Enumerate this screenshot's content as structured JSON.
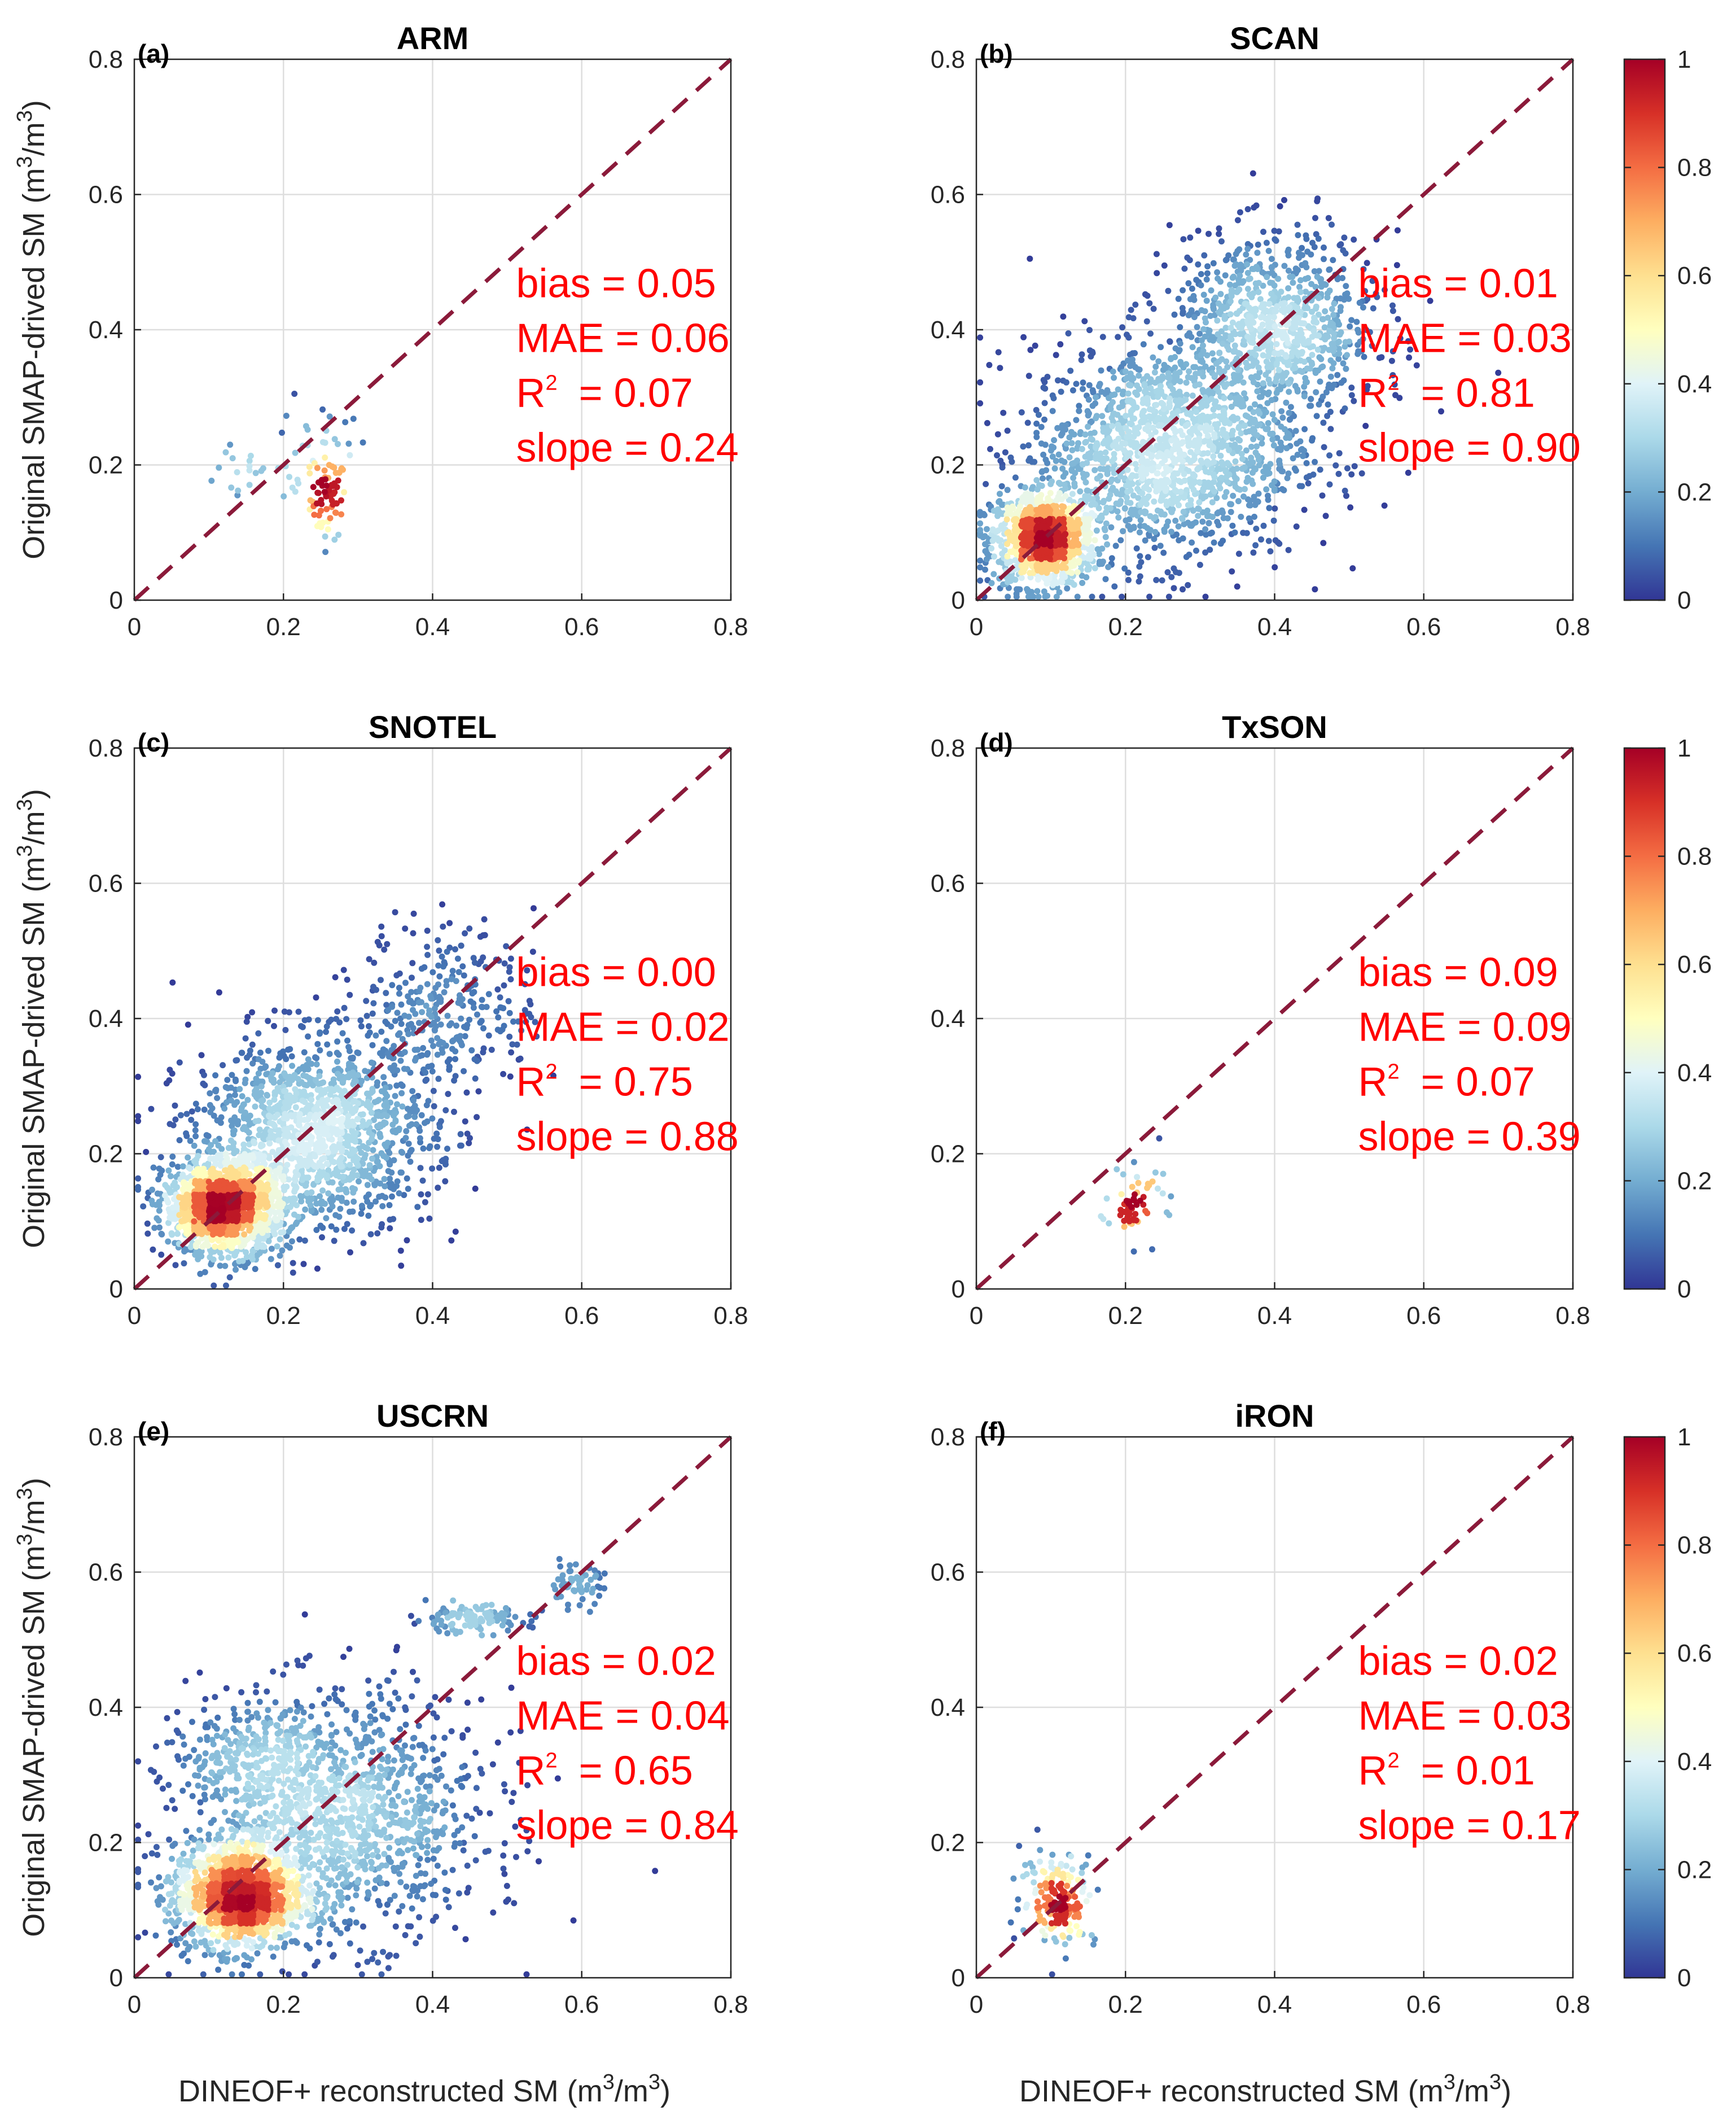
{
  "figure": {
    "xlabel": "DINEOF+ reconstructed SM (m",
    "ylabel": "Original SMAP-drived SM (m",
    "unit_sup": "3",
    "unit_mid": "/m",
    "unit_end": ")"
  },
  "colors": {
    "one_to_one_line": "#8b1a3a",
    "stat_text": "#ff0000",
    "colormap": [
      "#313695",
      "#4575b4",
      "#74add1",
      "#abd9e9",
      "#e0f3f8",
      "#ffffbf",
      "#fee090",
      "#fdae61",
      "#f46d43",
      "#d73027",
      "#a50026"
    ]
  },
  "colorbar": {
    "ticks": [
      0,
      0.2,
      0.4,
      0.6,
      0.8,
      1
    ],
    "tick_labels": [
      "0",
      "0.2",
      "0.4",
      "0.6",
      "0.8",
      "1"
    ]
  },
  "chart_data": [
    {
      "panel": "(a)",
      "title": "ARM",
      "type": "scatter",
      "xlim": [
        0,
        0.8
      ],
      "ylim": [
        0,
        0.8
      ],
      "xticks": [
        0,
        0.2,
        0.4,
        0.6,
        0.8
      ],
      "xtick_labels": [
        "0",
        "0.2",
        "0.4",
        "0.6",
        "0.8"
      ],
      "yticks": [
        0,
        0.2,
        0.4,
        0.6,
        0.8
      ],
      "ytick_labels": [
        "0",
        "0.2",
        "0.4",
        "0.6",
        "0.8"
      ],
      "grid": true,
      "one_to_one_line": true,
      "stats": {
        "bias": "bias = 0.05",
        "mae": "MAE = 0.06",
        "r2_label": "R",
        "r2_value": "= 0.07",
        "slope": "slope = 0.24"
      },
      "clusters": [
        {
          "x": 0.26,
          "y": 0.15,
          "sx": 0.012,
          "sy": 0.03,
          "n": 70
        },
        {
          "x": 0.16,
          "y": 0.18,
          "sx": 0.05,
          "sy": 0.02,
          "n": 25
        },
        {
          "x": 0.25,
          "y": 0.24,
          "sx": 0.03,
          "sy": 0.03,
          "n": 25
        }
      ]
    },
    {
      "panel": "(b)",
      "title": "SCAN",
      "type": "scatter",
      "xlim": [
        0,
        0.8
      ],
      "ylim": [
        0,
        0.8
      ],
      "xticks": [
        0,
        0.2,
        0.4,
        0.6,
        0.8
      ],
      "xtick_labels": [
        "0",
        "0.2",
        "0.4",
        "0.6",
        "0.8"
      ],
      "yticks": [
        0,
        0.2,
        0.4,
        0.6,
        0.8
      ],
      "ytick_labels": [
        "0",
        "0.2",
        "0.4",
        "0.6",
        "0.8"
      ],
      "grid": true,
      "one_to_one_line": true,
      "stats": {
        "bias": "bias = 0.01",
        "mae": "MAE = 0.03",
        "r2_label": "R",
        "r2_value": "= 0.81",
        "slope": "slope = 0.90"
      },
      "clusters": [
        {
          "x": 0.09,
          "y": 0.09,
          "sx": 0.035,
          "sy": 0.035,
          "n": 1000
        },
        {
          "x": 0.25,
          "y": 0.22,
          "sx": 0.09,
          "sy": 0.08,
          "n": 1500
        },
        {
          "x": 0.4,
          "y": 0.4,
          "sx": 0.07,
          "sy": 0.07,
          "n": 900
        }
      ]
    },
    {
      "panel": "(c)",
      "title": "SNOTEL",
      "type": "scatter",
      "xlim": [
        0,
        0.8
      ],
      "ylim": [
        0,
        0.8
      ],
      "xticks": [
        0,
        0.2,
        0.4,
        0.6,
        0.8
      ],
      "xtick_labels": [
        "0",
        "0.2",
        "0.4",
        "0.6",
        "0.8"
      ],
      "yticks": [
        0,
        0.2,
        0.4,
        0.6,
        0.8
      ],
      "ytick_labels": [
        "0",
        "0.2",
        "0.4",
        "0.6",
        "0.8"
      ],
      "grid": true,
      "one_to_one_line": true,
      "stats": {
        "bias": "bias = 0.00",
        "mae": "MAE = 0.02",
        "r2_label": "R",
        "r2_value": "= 0.75",
        "slope": "slope = 0.88"
      },
      "clusters": [
        {
          "x": 0.12,
          "y": 0.12,
          "sx": 0.04,
          "sy": 0.035,
          "n": 1300
        },
        {
          "x": 0.24,
          "y": 0.23,
          "sx": 0.08,
          "sy": 0.07,
          "n": 1400
        },
        {
          "x": 0.42,
          "y": 0.42,
          "sx": 0.06,
          "sy": 0.06,
          "n": 300
        }
      ]
    },
    {
      "panel": "(d)",
      "title": "TxSON",
      "type": "scatter",
      "xlim": [
        0,
        0.8
      ],
      "ylim": [
        0,
        0.8
      ],
      "xticks": [
        0,
        0.2,
        0.4,
        0.6,
        0.8
      ],
      "xtick_labels": [
        "0",
        "0.2",
        "0.4",
        "0.6",
        "0.8"
      ],
      "yticks": [
        0,
        0.2,
        0.4,
        0.6,
        0.8
      ],
      "ytick_labels": [
        "0",
        "0.2",
        "0.4",
        "0.6",
        "0.8"
      ],
      "grid": true,
      "one_to_one_line": true,
      "stats": {
        "bias": "bias = 0.09",
        "mae": "MAE = 0.09",
        "r2_label": "R",
        "r2_value": "= 0.07",
        "slope": "slope = 0.39"
      },
      "clusters": [
        {
          "x": 0.205,
          "y": 0.115,
          "sx": 0.006,
          "sy": 0.012,
          "n": 30
        },
        {
          "x": 0.22,
          "y": 0.14,
          "sx": 0.03,
          "sy": 0.035,
          "n": 35
        }
      ]
    },
    {
      "panel": "(e)",
      "title": "USCRN",
      "type": "scatter",
      "xlim": [
        0,
        0.8
      ],
      "ylim": [
        0,
        0.8
      ],
      "xticks": [
        0,
        0.2,
        0.4,
        0.6,
        0.8
      ],
      "xtick_labels": [
        "0",
        "0.2",
        "0.4",
        "0.6",
        "0.8"
      ],
      "yticks": [
        0,
        0.2,
        0.4,
        0.6,
        0.8
      ],
      "ytick_labels": [
        "0",
        "0.2",
        "0.4",
        "0.6",
        "0.8"
      ],
      "grid": true,
      "one_to_one_line": true,
      "stats": {
        "bias": "bias = 0.02",
        "mae": "MAE = 0.04",
        "r2_label": "R",
        "r2_value": "= 0.65",
        "slope": "slope = 0.84"
      },
      "clusters": [
        {
          "x": 0.14,
          "y": 0.12,
          "sx": 0.045,
          "sy": 0.04,
          "n": 1200
        },
        {
          "x": 0.27,
          "y": 0.24,
          "sx": 0.1,
          "sy": 0.09,
          "n": 1300
        },
        {
          "x": 0.15,
          "y": 0.33,
          "sx": 0.05,
          "sy": 0.04,
          "n": 180
        },
        {
          "x": 0.45,
          "y": 0.53,
          "sx": 0.04,
          "sy": 0.01,
          "n": 120
        },
        {
          "x": 0.59,
          "y": 0.58,
          "sx": 0.02,
          "sy": 0.015,
          "n": 60
        }
      ]
    },
    {
      "panel": "(f)",
      "title": "iRON",
      "type": "scatter",
      "xlim": [
        0,
        0.8
      ],
      "ylim": [
        0,
        0.8
      ],
      "xticks": [
        0,
        0.2,
        0.4,
        0.6,
        0.8
      ],
      "xtick_labels": [
        "0",
        "0.2",
        "0.4",
        "0.6",
        "0.8"
      ],
      "yticks": [
        0,
        0.2,
        0.4,
        0.6,
        0.8
      ],
      "ytick_labels": [
        "0",
        "0.2",
        "0.4",
        "0.6",
        "0.8"
      ],
      "grid": true,
      "one_to_one_line": true,
      "stats": {
        "bias": "bias = 0.02",
        "mae": "MAE = 0.03",
        "r2_label": "R",
        "r2_value": "= 0.01",
        "slope": "slope = 0.17"
      },
      "clusters": [
        {
          "x": 0.12,
          "y": 0.1,
          "sx": 0.006,
          "sy": 0.008,
          "n": 30
        },
        {
          "x": 0.11,
          "y": 0.12,
          "sx": 0.025,
          "sy": 0.035,
          "n": 170
        }
      ]
    }
  ]
}
